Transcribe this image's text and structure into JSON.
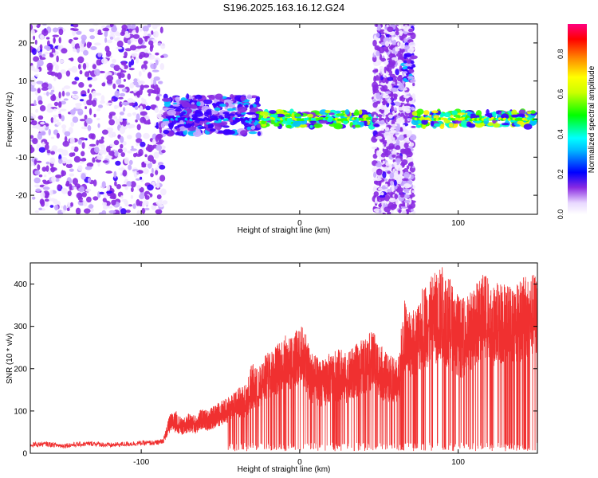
{
  "page_title": "S196.2025.163.16.12.G24",
  "chart_data": [
    {
      "type": "heatmap",
      "xlabel": "Height of straight line (km)",
      "ylabel": "Frequency (Hz)",
      "xlim": [
        -170,
        150
      ],
      "ylim": [
        -25,
        25
      ],
      "xticks": [
        -100,
        0,
        100
      ],
      "yticks": [
        -20,
        -10,
        0,
        10,
        20
      ],
      "colorbar": {
        "label": "Normalized spectral amplitude",
        "range": [
          0,
          0.95
        ],
        "ticks": [
          0.0,
          0.2,
          0.4,
          0.6,
          0.8
        ]
      },
      "grid": false,
      "regions": [
        {
          "x_range": [
            -170,
            -85
          ],
          "freq_range": [
            -25,
            25
          ],
          "description_values": {
            "amplitude_level": 0.15
          }
        },
        {
          "x_range": [
            -85,
            -25
          ],
          "freq_range": [
            -4,
            6
          ],
          "description_values": {
            "amplitude_level": 0.3
          }
        },
        {
          "x_range": [
            -25,
            47
          ],
          "freq_range": [
            -2,
            2
          ],
          "description_values": {
            "amplitude_level": 0.6
          }
        },
        {
          "x_range": [
            47,
            72
          ],
          "freq_range": [
            -25,
            25
          ],
          "description_values": {
            "amplitude_level": 0.15
          }
        },
        {
          "x_range": [
            66,
            72
          ],
          "freq_range": [
            10,
            17
          ],
          "description_values": {
            "amplitude_level": 0.3
          }
        },
        {
          "x_range": [
            72,
            150
          ],
          "freq_range": [
            -2,
            2
          ],
          "description_values": {
            "amplitude_level": 0.65
          }
        }
      ]
    },
    {
      "type": "line",
      "xlabel": "Height of straight line (km)",
      "ylabel": "SNR (10 * v/v)",
      "xlim": [
        -170,
        150
      ],
      "ylim": [
        0,
        450
      ],
      "xticks": [
        -100,
        0,
        100
      ],
      "yticks": [
        0,
        100,
        200,
        300,
        400
      ],
      "grid": false,
      "series": [
        {
          "color": "#f03030",
          "x": [
            -170,
            -160,
            -150,
            -140,
            -130,
            -120,
            -110,
            -100,
            -90,
            -86,
            -82,
            -78,
            -74,
            -70,
            -66,
            -62,
            -58,
            -54,
            -50,
            -46,
            -42,
            -38,
            -34,
            -30,
            -26,
            -22,
            -18,
            -14,
            -10,
            -6,
            -2,
            2,
            6,
            10,
            14,
            18,
            22,
            26,
            30,
            34,
            38,
            42,
            46,
            50,
            54,
            58,
            62,
            66,
            70,
            74,
            78,
            82,
            86,
            90,
            94,
            98,
            102,
            106,
            110,
            114,
            118,
            122,
            126,
            130,
            134,
            138,
            142,
            146,
            150
          ],
          "y": [
            20,
            22,
            18,
            21,
            23,
            19,
            22,
            24,
            25,
            30,
            70,
            75,
            60,
            72,
            68,
            80,
            78,
            85,
            95,
            100,
            110,
            120,
            125,
            160,
            150,
            175,
            190,
            200,
            215,
            210,
            225,
            235,
            190,
            170,
            165,
            175,
            180,
            185,
            175,
            190,
            200,
            210,
            220,
            200,
            180,
            175,
            170,
            280,
            250,
            270,
            300,
            310,
            320,
            330,
            310,
            290,
            270,
            280,
            300,
            320,
            325,
            300,
            310,
            305,
            300,
            310,
            320,
            325,
            330
          ],
          "spread": [
            12,
            12,
            12,
            12,
            12,
            12,
            12,
            12,
            12,
            12,
            45,
            50,
            40,
            45,
            45,
            50,
            50,
            55,
            60,
            60,
            65,
            75,
            80,
            110,
            100,
            110,
            120,
            125,
            130,
            130,
            135,
            140,
            130,
            120,
            110,
            120,
            125,
            125,
            120,
            125,
            130,
            135,
            140,
            130,
            120,
            110,
            100,
            170,
            160,
            170,
            200,
            210,
            220,
            230,
            220,
            200,
            190,
            190,
            200,
            200,
            200,
            190,
            200,
            200,
            190,
            190,
            200,
            200,
            200
          ]
        }
      ]
    }
  ]
}
